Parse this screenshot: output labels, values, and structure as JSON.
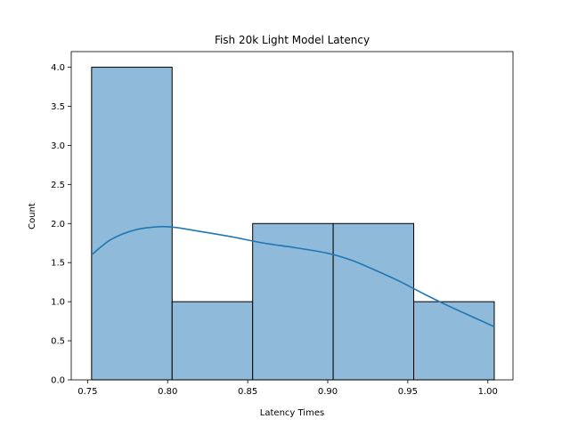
{
  "chart_data": {
    "type": "bar",
    "title": "Fish 20k Light Model Latency",
    "xlabel": "Latency Times",
    "ylabel": "Count",
    "xlim": [
      0.7398,
      1.0157
    ],
    "ylim": [
      0,
      4.2
    ],
    "bins": [
      {
        "x0": 0.7525,
        "x1": 0.8028,
        "count": 4
      },
      {
        "x0": 0.8028,
        "x1": 0.8531,
        "count": 1
      },
      {
        "x0": 0.8531,
        "x1": 0.9034,
        "count": 2
      },
      {
        "x0": 0.9034,
        "x1": 0.9537,
        "count": 2
      },
      {
        "x0": 0.9537,
        "x1": 1.004,
        "count": 1
      }
    ],
    "kde": {
      "x": [
        0.7525,
        0.765,
        0.78,
        0.795,
        0.805,
        0.82,
        0.84,
        0.86,
        0.88,
        0.9,
        0.915,
        0.93,
        0.945,
        0.96,
        0.975,
        0.99,
        1.004
      ],
      "y": [
        1.6,
        1.8,
        1.92,
        1.96,
        1.95,
        1.9,
        1.83,
        1.75,
        1.69,
        1.62,
        1.53,
        1.4,
        1.26,
        1.1,
        0.95,
        0.81,
        0.68
      ]
    },
    "xticks": [
      0.75,
      0.8,
      0.85,
      0.9,
      0.95,
      1.0
    ],
    "xtick_labels": [
      "0.75",
      "0.80",
      "0.85",
      "0.90",
      "0.95",
      "1.00"
    ],
    "yticks": [
      0.0,
      0.5,
      1.0,
      1.5,
      2.0,
      2.5,
      3.0,
      3.5,
      4.0
    ],
    "ytick_labels": [
      "0.0",
      "0.5",
      "1.0",
      "1.5",
      "2.0",
      "2.5",
      "3.0",
      "3.5",
      "4.0"
    ],
    "colors": {
      "bar_fill": "#8fbad9",
      "bar_edge": "#000000",
      "kde_line": "#1f77b4"
    },
    "grid": false,
    "legend": "none"
  }
}
